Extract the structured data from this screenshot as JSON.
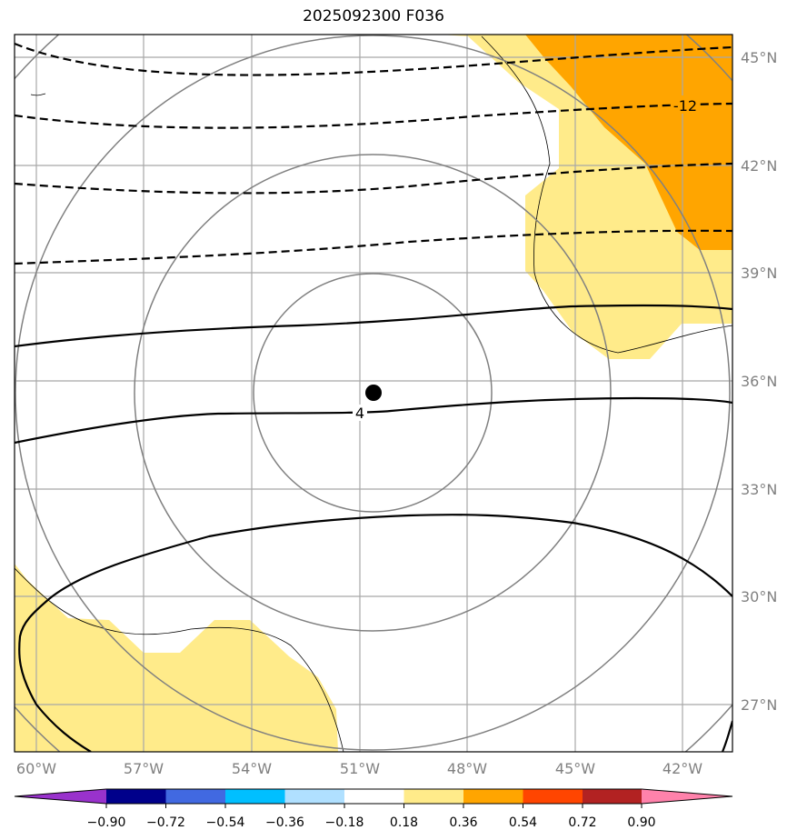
{
  "title": "2025092300 F036",
  "map": {
    "lon_range": [
      -61,
      -40
    ],
    "lat_range": [
      25.5,
      46.5
    ],
    "lat_labels": [
      "45°N",
      "42°N",
      "39°N",
      "36°N",
      "33°N",
      "30°N",
      "27°N"
    ],
    "lon_labels": [
      "60°W",
      "57°W",
      "54°W",
      "51°W",
      "48°W",
      "45°W",
      "42°W"
    ],
    "storm_center": {
      "lon": -50.6,
      "lat": 35.7
    },
    "contour_labels": [
      {
        "text": "-12",
        "lon": -42.0,
        "lat": 43.9
      },
      {
        "text": "4",
        "lon": -51.0,
        "lat": 34.9
      }
    ]
  },
  "colorbar": {
    "ticks": [
      "−0.90",
      "−0.72",
      "−0.54",
      "−0.36",
      "−0.18",
      "0.18",
      "0.36",
      "0.54",
      "0.72",
      "0.90"
    ],
    "colors": [
      "#9932cc",
      "#00008b",
      "#4169e1",
      "#00bfff",
      "#b0e0ff",
      "#ffffff",
      "#ffeb8a",
      "#ffa500",
      "#ff4500",
      "#b22222",
      "#ff82ab"
    ]
  },
  "fill_colors": {
    "low_positive": "#ffeb8a",
    "mid_positive": "#ffa500"
  }
}
